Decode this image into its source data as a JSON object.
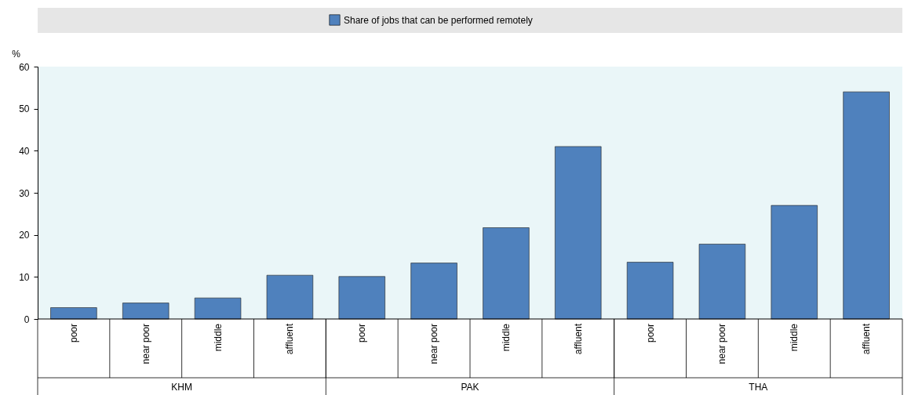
{
  "chart_data": {
    "type": "bar",
    "ylabel": "%",
    "categories": [
      "poor",
      "near poor",
      "middle",
      "affluent",
      "poor",
      "near poor",
      "middle",
      "affluent",
      "poor",
      "near poor",
      "middle",
      "affluent"
    ],
    "series": [
      {
        "name": "Share of jobs that can be performed remotely",
        "color": "#4f81bd",
        "values": [
          2.7,
          3.8,
          5.0,
          10.4,
          10.1,
          13.3,
          21.7,
          41.0,
          13.5,
          17.8,
          27.0,
          54.0
        ]
      }
    ],
    "annotations": [
      "KHM",
      "PAK",
      "THA"
    ],
    "ylim": [
      0,
      60
    ],
    "yticks": [
      0,
      10,
      20,
      30,
      40,
      50,
      60
    ],
    "grid": false,
    "legend": "top"
  }
}
